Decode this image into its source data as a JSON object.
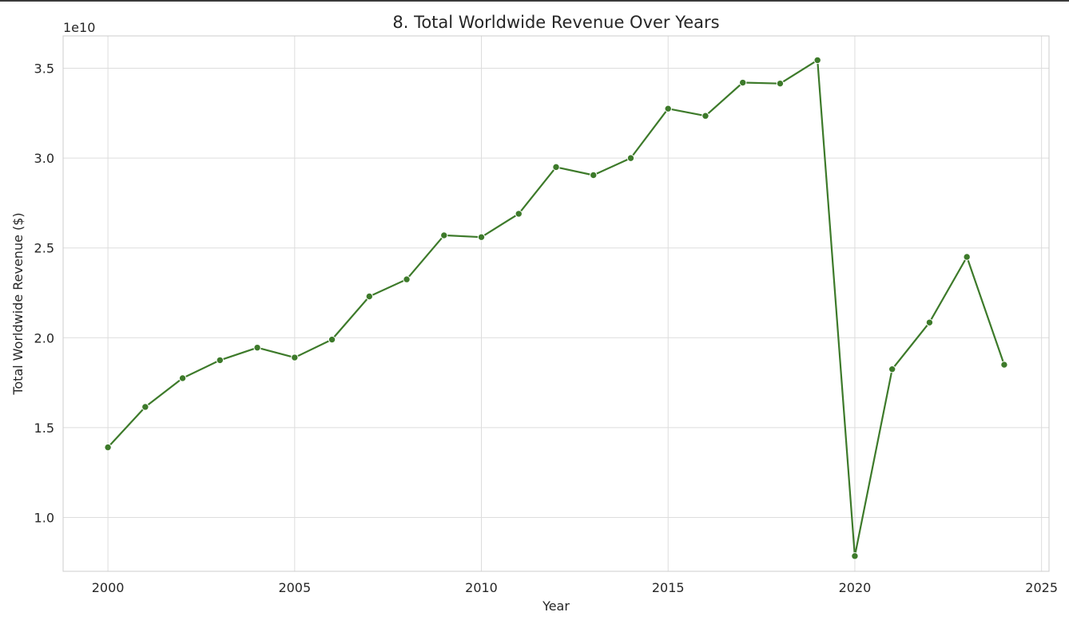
{
  "chart_data": {
    "type": "line",
    "title": "8. Total Worldwide Revenue Over Years",
    "xlabel": "Year",
    "ylabel": "Total Worldwide Revenue ($)",
    "y_offset_label": "1e10",
    "xlim": [
      1998.8,
      2025.2
    ],
    "ylim": [
      0.7,
      3.68
    ],
    "x_ticks": [
      2000,
      2005,
      2010,
      2015,
      2020,
      2025
    ],
    "x_tick_labels": [
      "2000",
      "2005",
      "2010",
      "2015",
      "2020",
      "2025"
    ],
    "y_ticks": [
      1.0,
      1.5,
      2.0,
      2.5,
      3.0,
      3.5
    ],
    "y_tick_labels": [
      "1.0",
      "1.5",
      "2.0",
      "2.5",
      "3.0",
      "3.5"
    ],
    "grid": true,
    "series": [
      {
        "color": "#3d7a2a",
        "marker": "circle",
        "x": [
          2000,
          2001,
          2002,
          2003,
          2004,
          2005,
          2006,
          2007,
          2008,
          2009,
          2010,
          2011,
          2012,
          2013,
          2014,
          2015,
          2016,
          2017,
          2018,
          2019,
          2020,
          2021,
          2022,
          2023,
          2024
        ],
        "y": [
          1.39,
          1.615,
          1.775,
          1.875,
          1.945,
          1.89,
          1.99,
          2.23,
          2.325,
          2.57,
          2.56,
          2.69,
          2.95,
          2.905,
          3.0,
          3.275,
          3.235,
          3.42,
          3.415,
          3.545,
          0.785,
          1.825,
          2.085,
          2.45,
          1.85
        ]
      }
    ]
  }
}
